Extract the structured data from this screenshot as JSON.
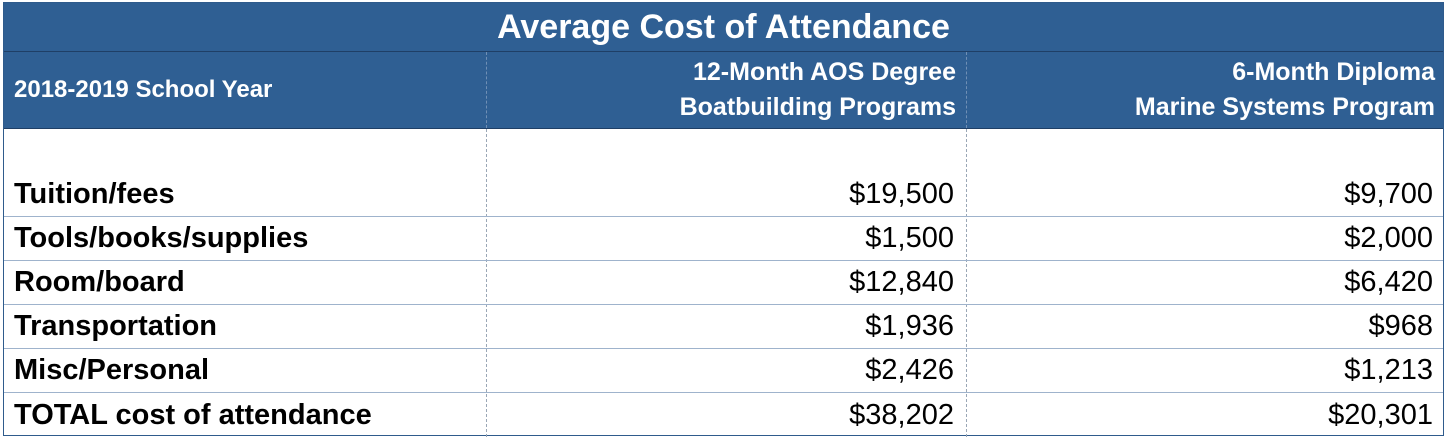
{
  "title": "Average Cost of Attendance",
  "header": {
    "col1": "2018-2019 School Year",
    "col2_line1": "12-Month AOS Degree",
    "col2_line2": "Boatbuilding Programs",
    "col3_line1": "6-Month Diploma",
    "col3_line2": "Marine Systems Program"
  },
  "rows": [
    {
      "label": "Tuition/fees",
      "aos": "$19,500",
      "diploma": "$9,700"
    },
    {
      "label": "Tools/books/supplies",
      "aos": "$1,500",
      "diploma": "$2,000"
    },
    {
      "label": "Room/board",
      "aos": "$12,840",
      "diploma": "$6,420"
    },
    {
      "label": "Transportation",
      "aos": "$1,936",
      "diploma": "$968"
    },
    {
      "label": "Misc/Personal",
      "aos": "$2,426",
      "diploma": "$1,213"
    },
    {
      "label": "TOTAL cost of attendance",
      "aos": "$38,202",
      "diploma": "$20,301"
    }
  ],
  "colors": {
    "header_bg": "#2f5f93",
    "header_text": "#ffffff",
    "body_text": "#000000"
  }
}
